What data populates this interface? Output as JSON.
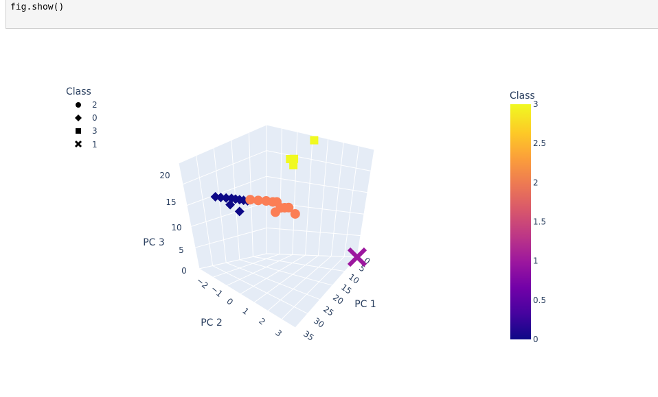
{
  "code_cell": {
    "line": "fig.show()"
  },
  "chart_data": {
    "type": "scatter3d",
    "axes": {
      "x": {
        "title": "PC 1",
        "ticks": [
          "0",
          "5",
          "10",
          "15",
          "20",
          "25",
          "30",
          "35"
        ]
      },
      "y": {
        "title": "PC 2",
        "ticks": [
          "−2",
          "−1",
          "0",
          "1",
          "2",
          "3"
        ]
      },
      "z": {
        "title": "PC 3",
        "ticks": [
          "0",
          "5",
          "10",
          "15",
          "20"
        ]
      }
    },
    "legend": {
      "title": "Class",
      "placement": "top-left",
      "items": [
        {
          "label": "2",
          "symbol": "circle"
        },
        {
          "label": "0",
          "symbol": "diamond"
        },
        {
          "label": "3",
          "symbol": "square"
        },
        {
          "label": "1",
          "symbol": "x"
        }
      ]
    },
    "colorbar": {
      "title": "Class",
      "range": [
        0,
        3
      ],
      "ticks": [
        "0",
        "0.5",
        "1",
        "1.5",
        "2",
        "2.5",
        "3"
      ],
      "colorscale": [
        "#0d0887",
        "#46039f",
        "#7201a8",
        "#9c179e",
        "#bd3786",
        "#d8576b",
        "#ed7953",
        "#fb9f3a",
        "#fdca26",
        "#f0f921"
      ]
    },
    "series": [
      {
        "class": 0,
        "symbol": "diamond",
        "color": "#0d0887",
        "points": [
          [
            1,
            -1.0,
            12
          ],
          [
            2,
            -0.8,
            12
          ],
          [
            3,
            -0.6,
            12
          ],
          [
            4,
            -0.4,
            12
          ],
          [
            5,
            -0.3,
            12
          ],
          [
            6,
            -0.2,
            12
          ],
          [
            7,
            -0.1,
            12
          ],
          [
            8,
            0.0,
            12
          ],
          [
            4,
            -0.5,
            11
          ],
          [
            6,
            -0.2,
            10
          ]
        ]
      },
      {
        "class": 2,
        "symbol": "circle",
        "color": "#fb7e55",
        "points": [
          [
            8,
            0.2,
            12
          ],
          [
            10,
            0.4,
            12
          ],
          [
            12,
            0.6,
            12
          ],
          [
            14,
            0.7,
            12
          ],
          [
            15,
            0.8,
            12
          ],
          [
            16,
            0.9,
            11
          ],
          [
            17,
            1.0,
            11
          ],
          [
            18,
            1.1,
            11
          ],
          [
            14,
            0.9,
            10
          ],
          [
            20,
            1.2,
            10
          ]
        ]
      },
      {
        "class": 3,
        "symbol": "square",
        "color": "#f0f921",
        "points": [
          [
            20,
            0.8,
            20
          ],
          [
            21,
            0.9,
            20
          ],
          [
            21,
            0.85,
            19
          ],
          [
            30,
            0.6,
            25
          ]
        ]
      },
      {
        "class": 1,
        "symbol": "x",
        "color": "#9c179e",
        "points": [
          [
            35,
            3.0,
            0
          ]
        ]
      }
    ]
  }
}
